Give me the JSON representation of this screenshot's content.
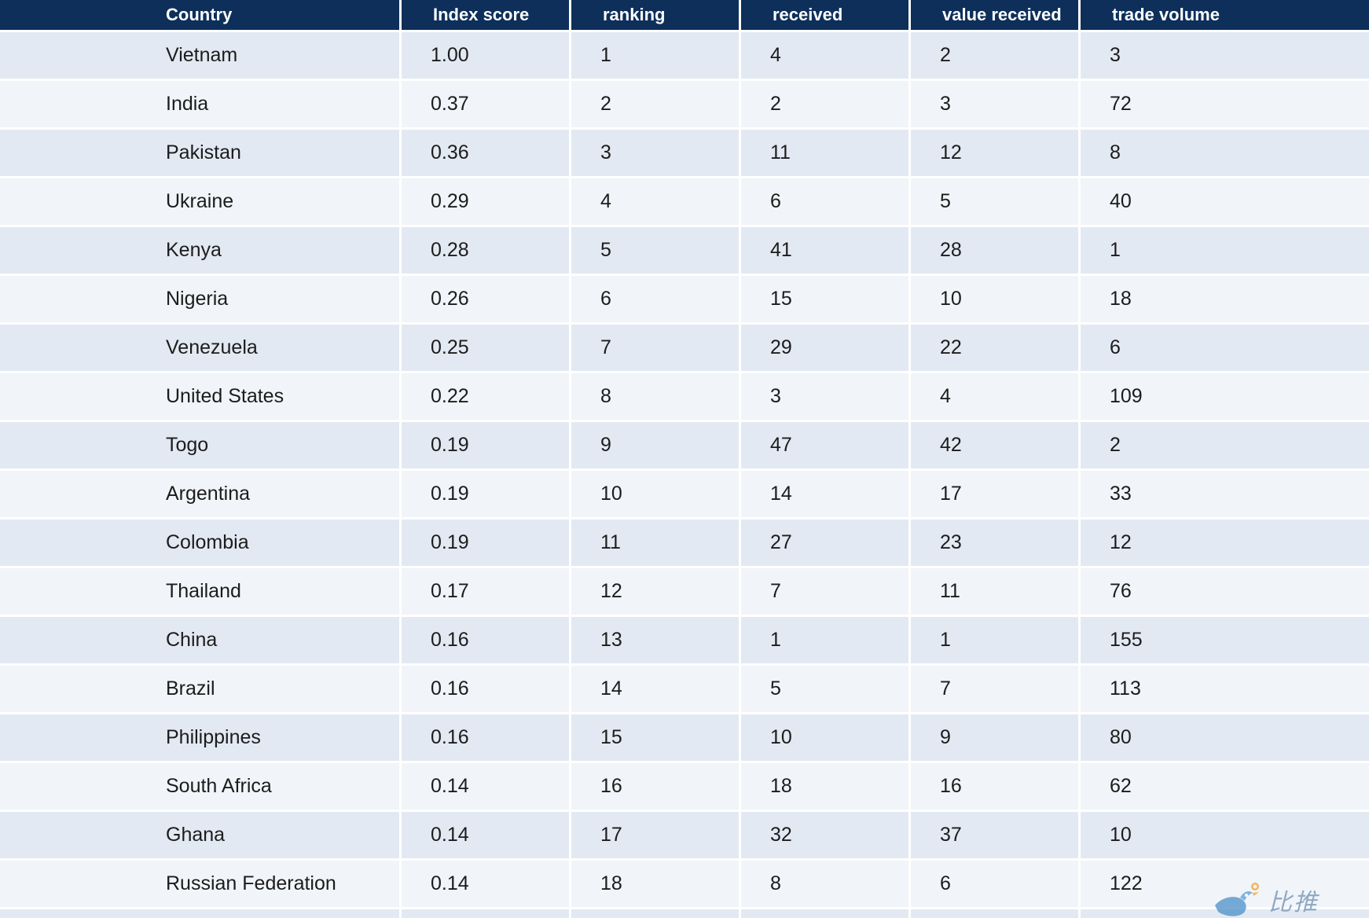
{
  "table": {
    "headers": [
      "Country",
      "Index score",
      "ranking",
      "received",
      "value received",
      "trade volume"
    ],
    "rows": [
      [
        "Vietnam",
        "1.00",
        "1",
        "4",
        "2",
        "3"
      ],
      [
        "India",
        "0.37",
        "2",
        "2",
        "3",
        "72"
      ],
      [
        "Pakistan",
        "0.36",
        "3",
        "11",
        "12",
        "8"
      ],
      [
        "Ukraine",
        "0.29",
        "4",
        "6",
        "5",
        "40"
      ],
      [
        "Kenya",
        "0.28",
        "5",
        "41",
        "28",
        "1"
      ],
      [
        "Nigeria",
        "0.26",
        "6",
        "15",
        "10",
        "18"
      ],
      [
        "Venezuela",
        "0.25",
        "7",
        "29",
        "22",
        "6"
      ],
      [
        "United States",
        "0.22",
        "8",
        "3",
        "4",
        "109"
      ],
      [
        "Togo",
        "0.19",
        "9",
        "47",
        "42",
        "2"
      ],
      [
        "Argentina",
        "0.19",
        "10",
        "14",
        "17",
        "33"
      ],
      [
        "Colombia",
        "0.19",
        "11",
        "27",
        "23",
        "12"
      ],
      [
        "Thailand",
        "0.17",
        "12",
        "7",
        "11",
        "76"
      ],
      [
        "China",
        "0.16",
        "13",
        "1",
        "1",
        "155"
      ],
      [
        "Brazil",
        "0.16",
        "14",
        "5",
        "7",
        "113"
      ],
      [
        "Philippines",
        "0.16",
        "15",
        "10",
        "9",
        "80"
      ],
      [
        "South Africa",
        "0.14",
        "16",
        "18",
        "16",
        "62"
      ],
      [
        "Ghana",
        "0.14",
        "17",
        "32",
        "37",
        "10"
      ],
      [
        "Russian Federation",
        "0.14",
        "18",
        "8",
        "6",
        "122"
      ],
      [
        "",
        "",
        "",
        "",
        "",
        ""
      ]
    ]
  },
  "watermark": {
    "text": "比推",
    "icon": "bird-logo-icon"
  },
  "colors": {
    "header_bg": "#0d2f5a",
    "header_text": "#ffffff",
    "row_odd": "#e2e9f2",
    "row_even": "#f1f4f8",
    "cell_text": "#1c1c1c"
  }
}
